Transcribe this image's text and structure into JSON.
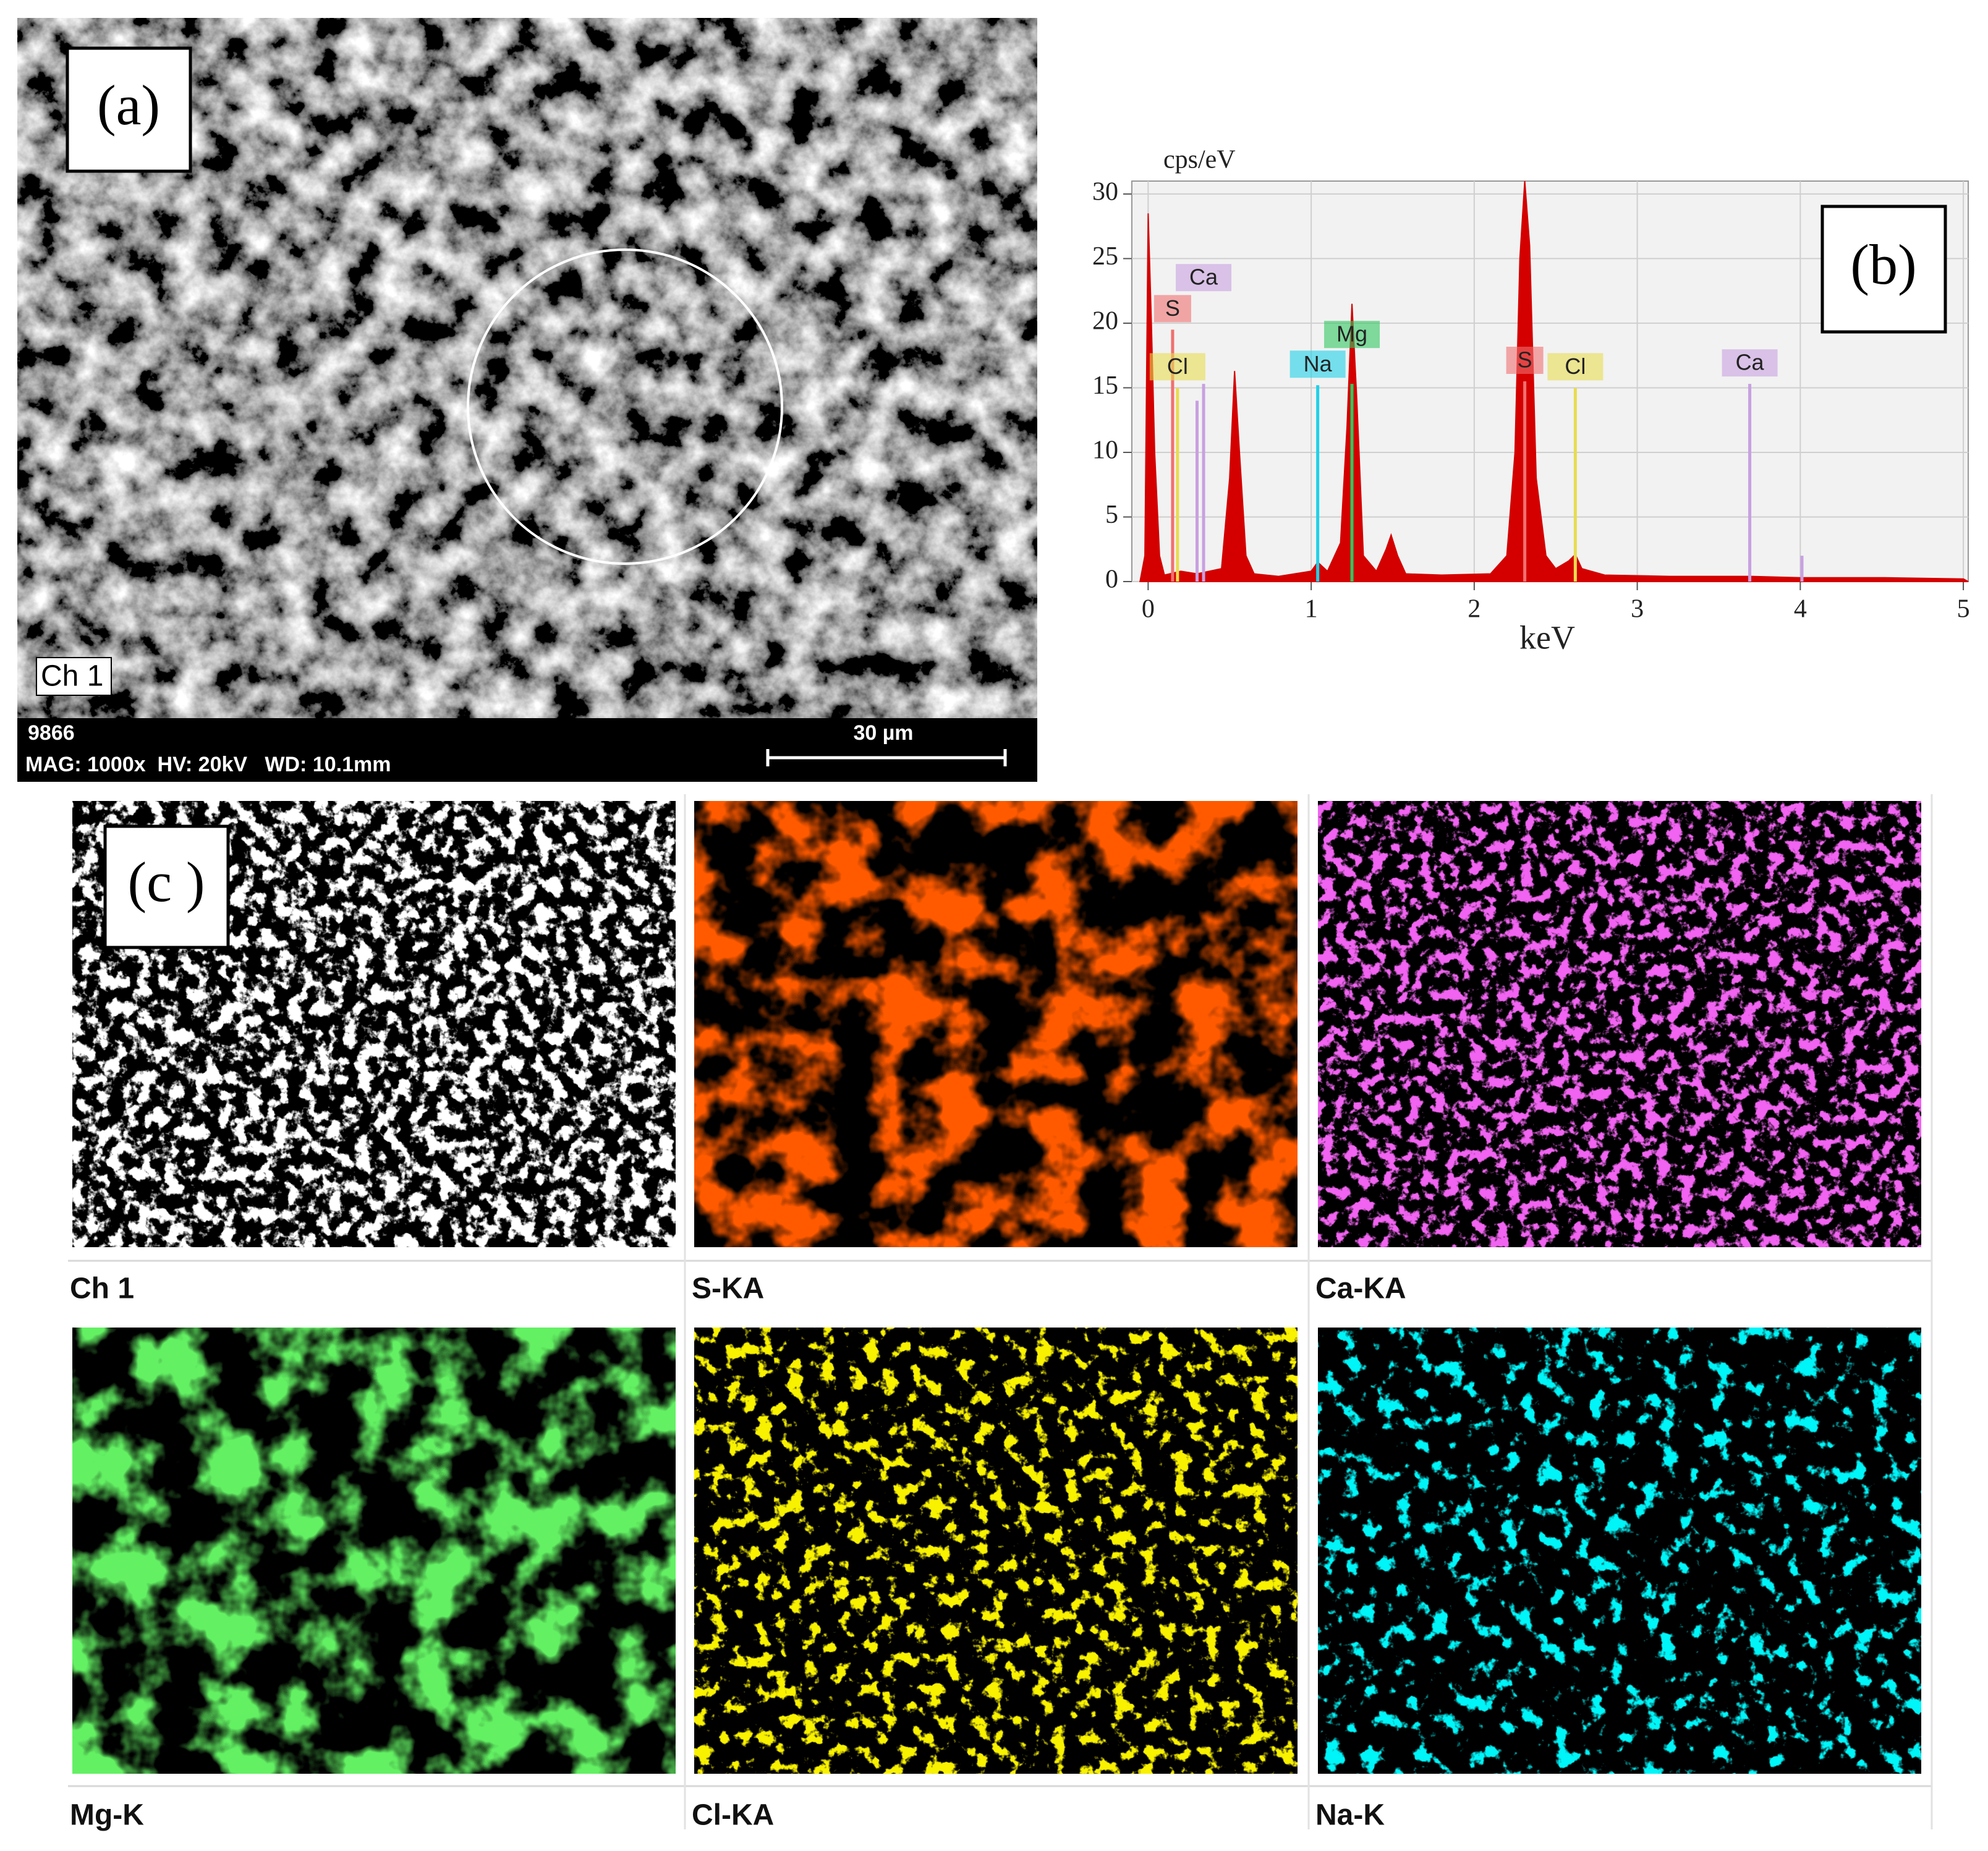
{
  "panel_a": {
    "label": "(a)",
    "channel": "Ch 1",
    "image_id": "9866",
    "settings": "MAG: 1000x  HV: 20kV   WD: 10.1mm",
    "scale_bar": "30 µm"
  },
  "chart_data": {
    "type": "area",
    "label": "(b)",
    "y_label": "cps/eV",
    "x_label": "keV",
    "x": [
      -0.05,
      -0.02,
      0.0,
      0.02,
      0.04,
      0.07,
      0.1,
      0.2,
      0.3,
      0.45,
      0.5,
      0.53,
      0.56,
      0.6,
      0.65,
      0.8,
      1.0,
      1.04,
      1.1,
      1.18,
      1.22,
      1.25,
      1.28,
      1.32,
      1.4,
      1.46,
      1.49,
      1.53,
      1.58,
      1.8,
      2.1,
      2.2,
      2.25,
      2.28,
      2.31,
      2.34,
      2.38,
      2.44,
      2.5,
      2.58,
      2.62,
      2.66,
      2.8,
      3.2,
      3.7,
      4.0,
      4.5,
      5.0,
      5.03
    ],
    "values": [
      0,
      2,
      28.5,
      20,
      10,
      2,
      0.5,
      0.8,
      0.6,
      1,
      8,
      16.3,
      10,
      2,
      0.6,
      0.4,
      0.8,
      1.5,
      0.8,
      3,
      12,
      21.5,
      14,
      2,
      0.8,
      2.5,
      3.6,
      2,
      0.6,
      0.5,
      0.6,
      2,
      10,
      25,
      31,
      26,
      8,
      2,
      1,
      1.6,
      2.1,
      1,
      0.5,
      0.4,
      0.4,
      0.3,
      0.3,
      0.2,
      0
    ],
    "color": "#d40000",
    "xlim": [
      -0.1,
      5.03
    ],
    "ylim": [
      0,
      31
    ],
    "xticks": [
      0,
      1,
      2,
      3,
      4,
      5
    ],
    "yticks": [
      0,
      5,
      10,
      15,
      20,
      25,
      30
    ],
    "grid": true,
    "element_lines": [
      {
        "element": "S",
        "energy": 0.15,
        "height": 19.5,
        "color": "#f07070"
      },
      {
        "element": "Cl",
        "energy": 0.18,
        "height": 15,
        "color": "#e8dc50"
      },
      {
        "energy": 0.3,
        "height": 14,
        "color": "#c8a0e0"
      },
      {
        "element": "Ca",
        "energy": 0.34,
        "height": 15.3,
        "color": "#c8a0e0"
      },
      {
        "element": "Na",
        "energy": 1.04,
        "height": 15.2,
        "color": "#20d0e8"
      },
      {
        "element": "Mg",
        "energy": 1.25,
        "height": 15.3,
        "color": "#30c860"
      },
      {
        "element": "S",
        "energy": 2.31,
        "height": 15.5,
        "color": "#f07070"
      },
      {
        "element": "Cl",
        "energy": 2.62,
        "height": 15,
        "color": "#e8dc50"
      },
      {
        "element": "Ca",
        "energy": 3.69,
        "height": 15.3,
        "color": "#c8a0e0"
      },
      {
        "energy": 4.01,
        "height": 2,
        "color": "#c8a0e0"
      }
    ]
  },
  "panel_c": {
    "label": "(c )",
    "maps": [
      {
        "label": "Ch 1",
        "color": "#ffffff"
      },
      {
        "label": "S-KA",
        "color": "#ff1a00"
      },
      {
        "label": "Ca-KA",
        "color": "#e020e0"
      },
      {
        "label": "Mg-K",
        "color": "#20e020"
      },
      {
        "label": "Cl-KA",
        "color": "#f0e000"
      },
      {
        "label": "Na-K",
        "color": "#00e8f0"
      }
    ]
  }
}
